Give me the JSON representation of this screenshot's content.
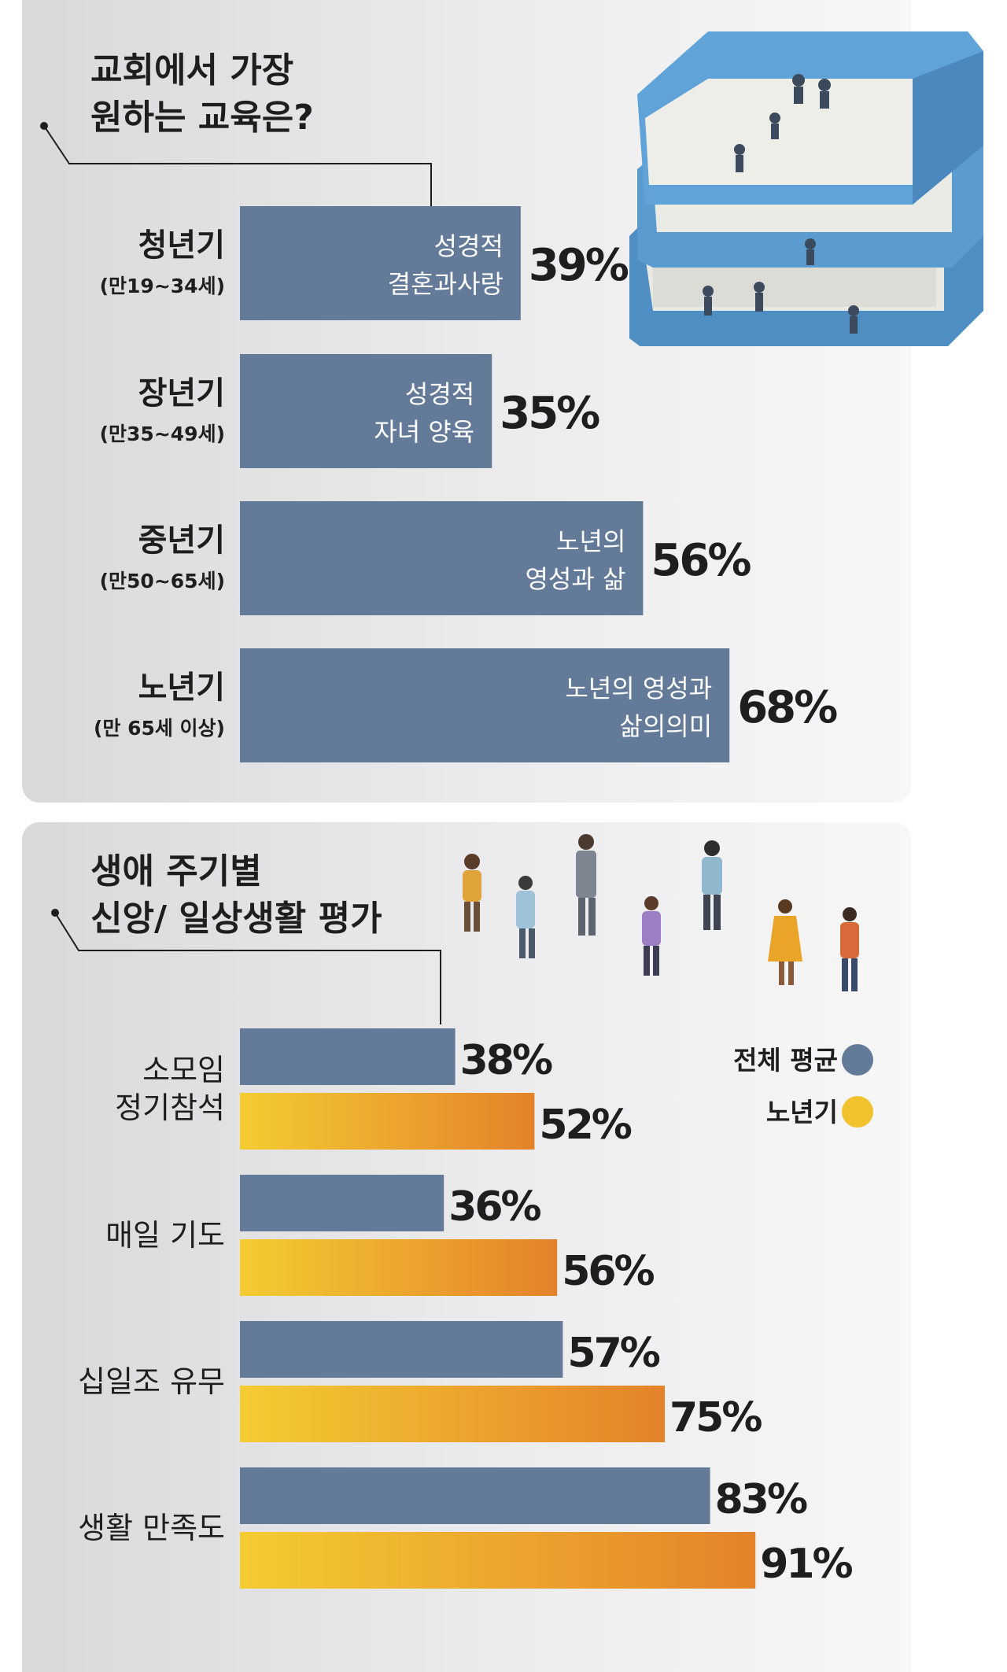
{
  "chart_data": [
    {
      "type": "bar",
      "title": [
        "교회에서 가장",
        "원하는 교육은?"
      ],
      "categories": [
        {
          "name": "청년기",
          "range": "(만19~34세)"
        },
        {
          "name": "장년기",
          "range": "(만35~49세)"
        },
        {
          "name": "중년기",
          "range": "(만50~65세)"
        },
        {
          "name": "노년기",
          "range": "(만 65세 이상)"
        }
      ],
      "bar_labels": [
        [
          "성경적",
          "결혼과사랑"
        ],
        [
          "성경적",
          "자녀 양육"
        ],
        [
          "노년의",
          "영성과 삶"
        ],
        [
          "노년의 영성과",
          "삶의의미"
        ]
      ],
      "values": [
        39,
        35,
        56,
        68
      ],
      "value_labels": [
        "39%",
        "35%",
        "56%",
        "68%"
      ],
      "color": "#637a98"
    },
    {
      "type": "bar",
      "title": [
        "생애 주기별",
        "신앙/ 일상생활 평가"
      ],
      "categories": [
        [
          "소모임",
          "정기참석"
        ],
        [
          "매일 기도"
        ],
        [
          "십일조 유무"
        ],
        [
          "생활 만족도"
        ]
      ],
      "series": [
        {
          "name": "전체 평균",
          "values": [
            38,
            36,
            57,
            83
          ],
          "labels": [
            "38%",
            "36%",
            "57%",
            "83%"
          ],
          "color": "#637a98"
        },
        {
          "name": "노년기",
          "values": [
            52,
            56,
            75,
            91
          ],
          "labels": [
            "52%",
            "56%",
            "75%",
            "91%"
          ],
          "color": "#f2c12e"
        }
      ],
      "legend_position": "right"
    }
  ]
}
